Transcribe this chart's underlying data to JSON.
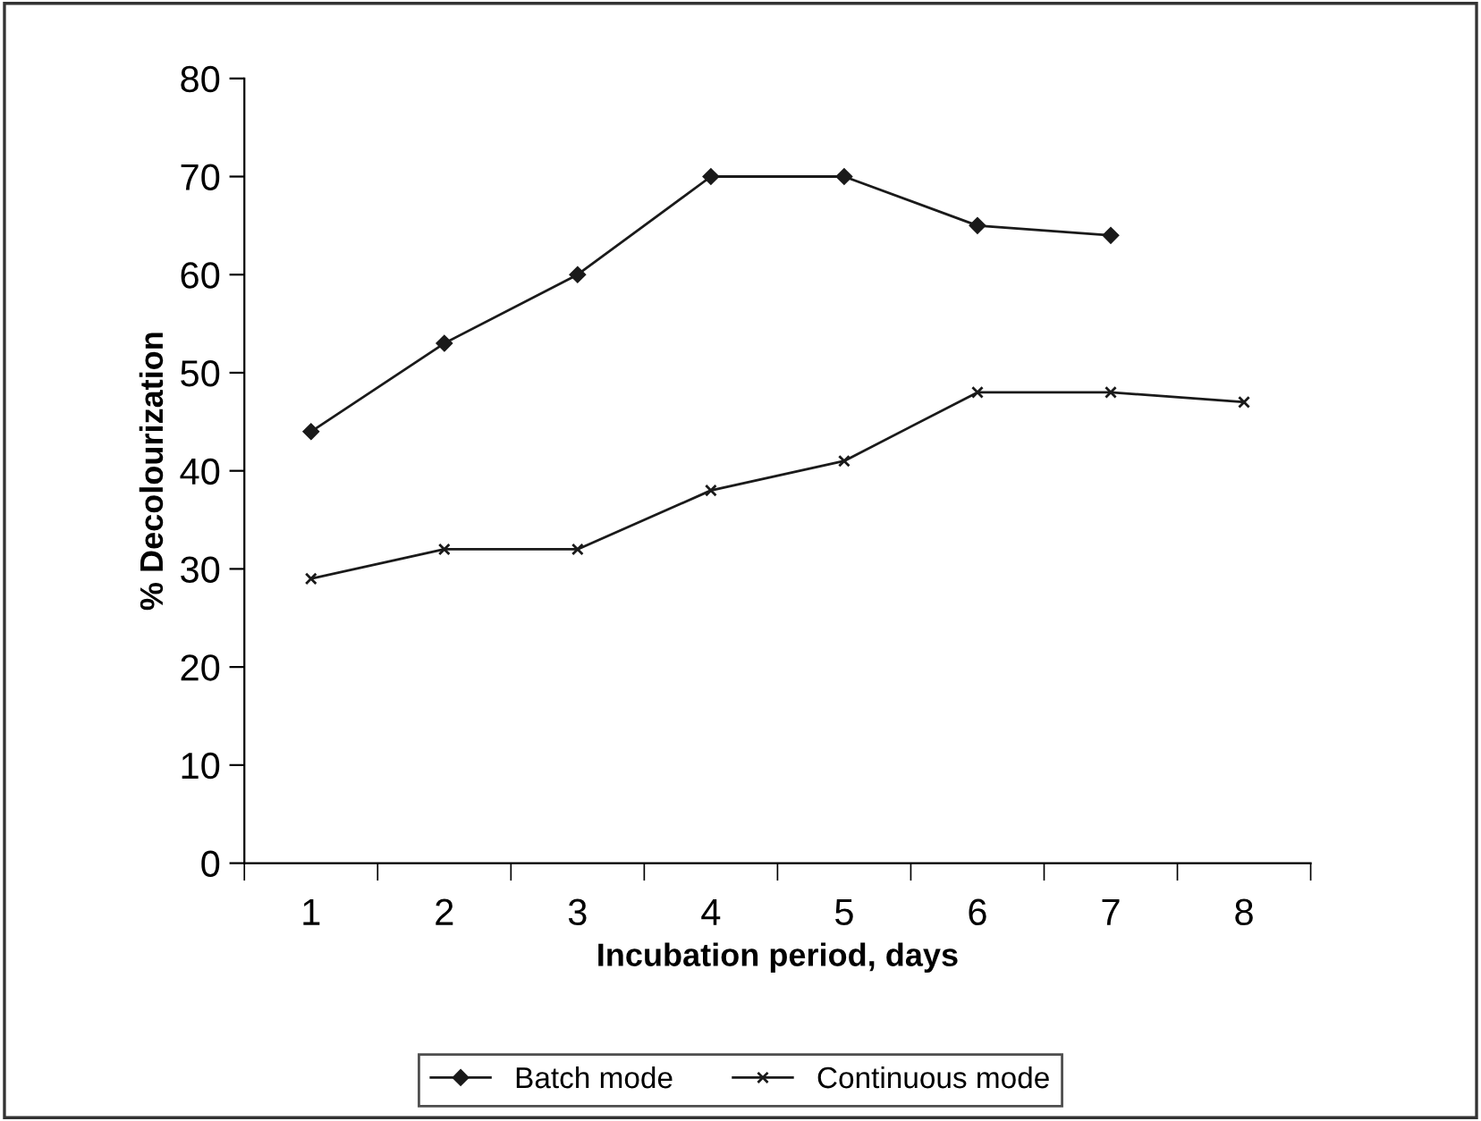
{
  "chart_data": {
    "type": "line",
    "xlabel": "Incubation period, days",
    "ylabel": "% Decolourization",
    "categories": [
      "1",
      "2",
      "3",
      "4",
      "5",
      "6",
      "7",
      "8"
    ],
    "series": [
      {
        "name": "Batch mode",
        "color": "#1a1a1a",
        "marker": "diamond",
        "values": [
          44,
          53,
          60,
          70,
          70,
          65,
          64,
          null
        ]
      },
      {
        "name": "Continuous mode",
        "color": "#1a1a1a",
        "marker": "cross",
        "values": [
          29,
          32,
          32,
          38,
          41,
          48,
          48,
          47
        ]
      }
    ],
    "ylim": [
      0,
      80
    ],
    "yticks": [
      0,
      10,
      20,
      30,
      40,
      50,
      60,
      70,
      80
    ],
    "grid": false,
    "legend": "bottom",
    "line_style": "solid"
  }
}
